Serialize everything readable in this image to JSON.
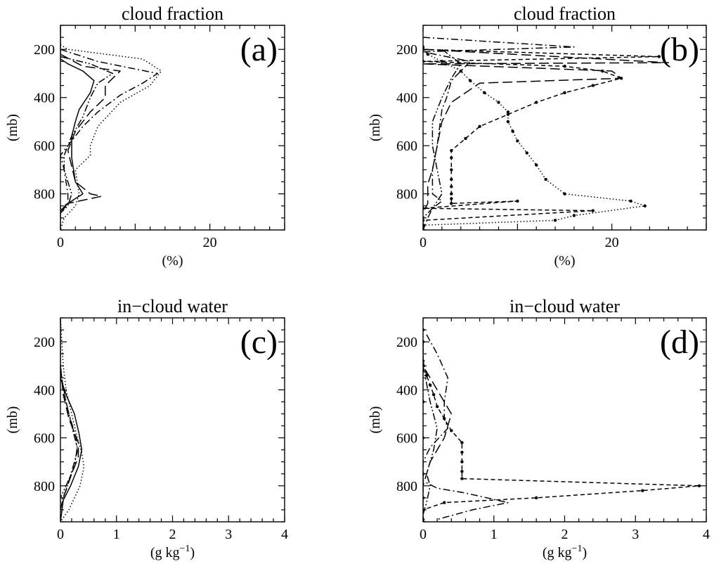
{
  "chart_data": [
    {
      "type": "line",
      "title": "cloud fraction",
      "panel_label": "(a)",
      "xlabel": "(%)",
      "ylabel": "(mb)",
      "xlim": [
        0,
        30
      ],
      "ylim": [
        950,
        100
      ],
      "xticks": [
        "0",
        "20"
      ],
      "yticks": [
        "200",
        "400",
        "600",
        "800"
      ],
      "series": [
        {
          "style": "solid",
          "points": [
            [
              0,
              100
            ],
            [
              0,
              240
            ],
            [
              1,
              260
            ],
            [
              3,
              290
            ],
            [
              4.5,
              330
            ],
            [
              4,
              380
            ],
            [
              2.5,
              450
            ],
            [
              2,
              500
            ],
            [
              1.5,
              560
            ],
            [
              1.5,
              650
            ],
            [
              2,
              750
            ],
            [
              3,
              800
            ],
            [
              1,
              840
            ],
            [
              0,
              870
            ],
            [
              0,
              950
            ]
          ]
        },
        {
          "style": "dotted",
          "points": [
            [
              0,
              180
            ],
            [
              1,
              200
            ],
            [
              11,
              240
            ],
            [
              13.5,
              290
            ],
            [
              12,
              350
            ],
            [
              8,
              420
            ],
            [
              5,
              520
            ],
            [
              4,
              600
            ],
            [
              4,
              640
            ],
            [
              2,
              700
            ],
            [
              2.5,
              800
            ],
            [
              2,
              850
            ],
            [
              0.5,
              900
            ],
            [
              0,
              950
            ]
          ]
        },
        {
          "style": "dashdot",
          "points": [
            [
              0,
              200
            ],
            [
              5,
              250
            ],
            [
              13,
              300
            ],
            [
              11,
              340
            ],
            [
              8,
              390
            ],
            [
              5,
              460
            ],
            [
              3,
              520
            ],
            [
              1,
              600
            ],
            [
              0,
              640
            ],
            [
              0.5,
              700
            ],
            [
              1,
              800
            ],
            [
              1,
              840
            ],
            [
              0,
              880
            ]
          ]
        },
        {
          "style": "longdash",
          "points": [
            [
              0,
              220
            ],
            [
              3,
              270
            ],
            [
              8,
              290
            ],
            [
              6,
              350
            ],
            [
              6,
              400
            ],
            [
              4,
              460
            ],
            [
              2,
              540
            ],
            [
              1,
              620
            ],
            [
              2,
              750
            ],
            [
              4,
              800
            ],
            [
              5.5,
              810
            ],
            [
              1,
              840
            ],
            [
              0,
              860
            ]
          ]
        },
        {
          "style": "dashdotdot",
          "points": [
            [
              0,
              230
            ],
            [
              4,
              260
            ],
            [
              7,
              300
            ],
            [
              5,
              340
            ],
            [
              4,
              400
            ],
            [
              3,
              480
            ],
            [
              1.5,
              560
            ],
            [
              0.5,
              640
            ],
            [
              0.5,
              700
            ],
            [
              1.5,
              800
            ],
            [
              1,
              850
            ],
            [
              0,
              880
            ]
          ]
        }
      ]
    },
    {
      "type": "line",
      "title": "cloud fraction",
      "panel_label": "(b)",
      "xlabel": "(%)",
      "ylabel": "(mb)",
      "xlim": [
        0,
        30
      ],
      "ylim": [
        950,
        100
      ],
      "xticks": [
        "0",
        "20"
      ],
      "yticks": [
        "200",
        "400",
        "600",
        "800"
      ],
      "series": [
        {
          "style": "dashdot",
          "points": [
            [
              0,
              150
            ],
            [
              16,
              190
            ],
            [
              0,
              210
            ],
            [
              5,
              250
            ],
            [
              4,
              290
            ],
            [
              3,
              330
            ],
            [
              2.5,
              400
            ],
            [
              2,
              450
            ],
            [
              1.5,
              600
            ],
            [
              1,
              700
            ],
            [
              1,
              800
            ],
            [
              2,
              830
            ],
            [
              1,
              860
            ],
            [
              0.5,
              900
            ],
            [
              0,
              950
            ]
          ]
        },
        {
          "style": "longdash",
          "points": [
            [
              0,
              200
            ],
            [
              26,
              255
            ],
            [
              0,
              260
            ],
            [
              20,
              290
            ],
            [
              21,
              320
            ],
            [
              6,
              340
            ],
            [
              3,
              420
            ],
            [
              2,
              500
            ],
            [
              1,
              700
            ],
            [
              0.5,
              760
            ],
            [
              0.5,
              840
            ],
            [
              0,
              880
            ]
          ]
        },
        {
          "style": "dashed",
          "markers": true,
          "points": [
            [
              0,
              200
            ],
            [
              25,
              230
            ],
            [
              0,
              250
            ],
            [
              15,
              270
            ],
            [
              19,
              290
            ],
            [
              21,
              320
            ],
            [
              18,
              350
            ],
            [
              15,
              380
            ],
            [
              12,
              420
            ],
            [
              9,
              470
            ],
            [
              6,
              520
            ],
            [
              4.5,
              570
            ],
            [
              3,
              620
            ],
            [
              3,
              650
            ],
            [
              3,
              700
            ],
            [
              3,
              740
            ],
            [
              3,
              770
            ],
            [
              3,
              800
            ],
            [
              3,
              820
            ],
            [
              3,
              840
            ],
            [
              10,
              830
            ],
            [
              0,
              860
            ],
            [
              18,
              870
            ],
            [
              0,
              910
            ],
            [
              0,
              940
            ]
          ]
        },
        {
          "style": "dotted",
          "markers": true,
          "points": [
            [
              0,
              190
            ],
            [
              0.5,
              220
            ],
            [
              2,
              250
            ],
            [
              4,
              290
            ],
            [
              5,
              330
            ],
            [
              6.5,
              380
            ],
            [
              8,
              420
            ],
            [
              9,
              460
            ],
            [
              9,
              500
            ],
            [
              9.5,
              540
            ],
            [
              10,
              580
            ],
            [
              11,
              630
            ],
            [
              12,
              680
            ],
            [
              13,
              740
            ],
            [
              15,
              800
            ],
            [
              22,
              830
            ],
            [
              23.5,
              850
            ],
            [
              16,
              890
            ],
            [
              14,
              910
            ],
            [
              0,
              930
            ],
            [
              0,
              950
            ]
          ]
        },
        {
          "style": "dashdotdot",
          "points": [
            [
              2,
              200
            ],
            [
              4,
              260
            ],
            [
              3,
              320
            ],
            [
              2,
              400
            ],
            [
              1,
              500
            ],
            [
              1,
              600
            ],
            [
              1.5,
              700
            ],
            [
              2,
              800
            ],
            [
              1,
              860
            ],
            [
              0,
              900
            ]
          ]
        }
      ]
    },
    {
      "type": "line",
      "title": "in−cloud water",
      "panel_label": "(c)",
      "xlabel": "(g kg",
      "xlabel_sup": "−1",
      "xlabel_tail": ")",
      "ylabel": "(mb)",
      "xlim": [
        0,
        4
      ],
      "ylim": [
        950,
        100
      ],
      "xticks": [
        "0",
        "1",
        "2",
        "3",
        "4"
      ],
      "yticks": [
        "200",
        "400",
        "600",
        "800"
      ],
      "series": [
        {
          "style": "solid",
          "points": [
            [
              0,
              100
            ],
            [
              0,
              350
            ],
            [
              0.1,
              420
            ],
            [
              0.25,
              500
            ],
            [
              0.33,
              580
            ],
            [
              0.38,
              650
            ],
            [
              0.32,
              720
            ],
            [
              0.18,
              800
            ],
            [
              0.05,
              860
            ],
            [
              0,
              950
            ]
          ]
        },
        {
          "style": "dotted",
          "points": [
            [
              0,
              100
            ],
            [
              0.05,
              300
            ],
            [
              0.1,
              400
            ],
            [
              0.2,
              500
            ],
            [
              0.3,
              600
            ],
            [
              0.38,
              660
            ],
            [
              0.42,
              720
            ],
            [
              0.35,
              800
            ],
            [
              0.15,
              900
            ],
            [
              0,
              950
            ]
          ]
        },
        {
          "style": "dashdot",
          "points": [
            [
              0,
              300
            ],
            [
              0.05,
              400
            ],
            [
              0.15,
              500
            ],
            [
              0.28,
              600
            ],
            [
              0.3,
              660
            ],
            [
              0.2,
              740
            ],
            [
              0.1,
              820
            ],
            [
              0,
              870
            ]
          ]
        },
        {
          "style": "longdash",
          "points": [
            [
              0,
              300
            ],
            [
              0.05,
              420
            ],
            [
              0.15,
              520
            ],
            [
              0.32,
              620
            ],
            [
              0.32,
              680
            ],
            [
              0.2,
              750
            ],
            [
              0.05,
              850
            ],
            [
              0,
              900
            ]
          ]
        },
        {
          "style": "dashdotdot",
          "points": [
            [
              0,
              320
            ],
            [
              0.1,
              450
            ],
            [
              0.2,
              550
            ],
            [
              0.3,
              640
            ],
            [
              0.25,
              720
            ],
            [
              0.1,
              800
            ],
            [
              0,
              850
            ]
          ]
        }
      ]
    },
    {
      "type": "line",
      "title": "in−cloud water",
      "panel_label": "(d)",
      "xlabel": "(g kg",
      "xlabel_sup": "−1",
      "xlabel_tail": ")",
      "ylabel": "(mb)",
      "xlim": [
        0,
        4
      ],
      "ylim": [
        950,
        100
      ],
      "xticks": [
        "0",
        "1",
        "2",
        "3",
        "4"
      ],
      "yticks": [
        "200",
        "400",
        "600",
        "800"
      ],
      "series": [
        {
          "style": "dashdot",
          "points": [
            [
              0.05,
              170
            ],
            [
              0.2,
              250
            ],
            [
              0.35,
              350
            ],
            [
              0.3,
              450
            ],
            [
              0.3,
              520
            ],
            [
              0.35,
              560
            ],
            [
              0.1,
              640
            ],
            [
              0,
              700
            ],
            [
              0,
              780
            ],
            [
              0.2,
              810
            ],
            [
              0.6,
              830
            ],
            [
              1.2,
              870
            ],
            [
              0.7,
              900
            ],
            [
              0.2,
              940
            ]
          ]
        },
        {
          "style": "longdash",
          "points": [
            [
              0,
              200
            ],
            [
              0,
              300
            ],
            [
              0.2,
              400
            ],
            [
              0.4,
              500
            ],
            [
              0.3,
              600
            ],
            [
              0.1,
              700
            ],
            [
              0,
              800
            ],
            [
              0,
              900
            ]
          ]
        },
        {
          "style": "dashed",
          "markers": true,
          "points": [
            [
              0,
              200
            ],
            [
              0,
              280
            ],
            [
              0.05,
              340
            ],
            [
              0.1,
              380
            ],
            [
              0.15,
              420
            ],
            [
              0.2,
              470
            ],
            [
              0.3,
              520
            ],
            [
              0.4,
              570
            ],
            [
              0.55,
              620
            ],
            [
              0.55,
              660
            ],
            [
              0.55,
              700
            ],
            [
              0.55,
              740
            ],
            [
              0.55,
              770
            ],
            [
              3.9,
              800
            ],
            [
              3.1,
              820
            ],
            [
              1.6,
              850
            ],
            [
              0.3,
              870
            ],
            [
              0,
              900
            ],
            [
              0,
              940
            ]
          ]
        },
        {
          "style": "dotted",
          "markers": true,
          "points": [
            [
              0,
              150
            ],
            [
              0,
              300
            ],
            [
              0,
              450
            ],
            [
              0,
              600
            ],
            [
              0,
              750
            ],
            [
              0,
              850
            ],
            [
              0,
              950
            ]
          ]
        },
        {
          "style": "dashdotdot",
          "points": [
            [
              0,
              300
            ],
            [
              0.1,
              450
            ],
            [
              0.2,
              560
            ],
            [
              0.15,
              650
            ],
            [
              0.05,
              750
            ],
            [
              0.1,
              800
            ],
            [
              0.05,
              870
            ],
            [
              0,
              920
            ]
          ]
        }
      ]
    }
  ]
}
